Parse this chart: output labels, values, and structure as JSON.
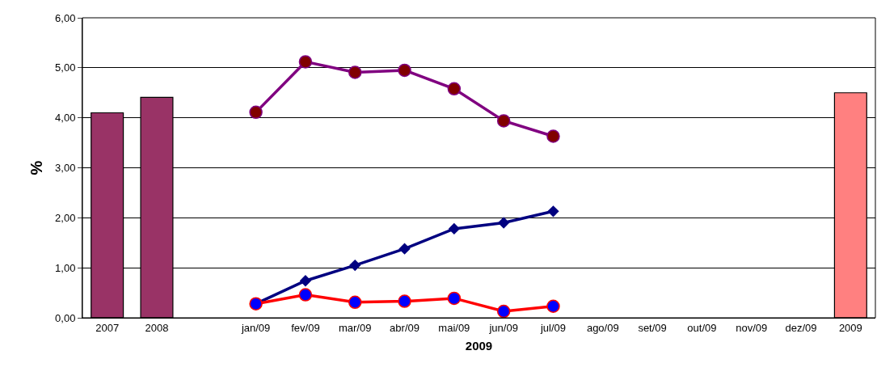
{
  "chart_data": {
    "type": "bar",
    "xlabel": "2009",
    "ylabel": "%",
    "categories": [
      "2007",
      "2008",
      null,
      "jan/09",
      "fev/09",
      "mar/09",
      "abr/09",
      "mai/09",
      "jun/09",
      "jul/09",
      "ago/09",
      "set/09",
      "out/09",
      "nov/09",
      "dez/09",
      "2009"
    ],
    "series": [
      {
        "color": "#993366",
        "colors": [
          "#993366",
          "#993366",
          null,
          null,
          null,
          null,
          null,
          null,
          null,
          null,
          null,
          null,
          null,
          null,
          null,
          "#ff8080"
        ],
        "values": [
          4.1,
          4.41,
          null,
          null,
          null,
          null,
          null,
          null,
          null,
          null,
          null,
          null,
          null,
          null,
          null,
          4.5
        ]
      },
      {
        "type": "line",
        "color": "#800080",
        "marker": "circle",
        "colors": [
          null,
          null,
          null,
          "#800000",
          "#800000",
          "#800000",
          "#800000",
          "#800000",
          "#800000",
          "#800000",
          null,
          null,
          null,
          null,
          null,
          null
        ],
        "values": [
          null,
          null,
          null,
          4.11,
          5.12,
          4.91,
          4.95,
          4.58,
          3.94,
          3.63,
          null,
          null,
          null,
          null,
          null,
          null
        ]
      },
      {
        "type": "line",
        "color": "#000080",
        "marker": "diamond",
        "values": [
          null,
          null,
          null,
          0.28,
          0.74,
          1.05,
          1.38,
          1.78,
          1.9,
          2.13,
          null,
          null,
          null,
          null,
          null,
          null
        ]
      },
      {
        "type": "line",
        "color": "#ff0000",
        "marker": "circle",
        "colors": [
          null,
          null,
          null,
          "#0000ff",
          "#0000ff",
          "#0000ff",
          "#0000ff",
          "#0000ff",
          "#0000ff",
          "#0000ff",
          null,
          null,
          null,
          null,
          null,
          null
        ],
        "values": [
          null,
          null,
          null,
          0.28,
          0.46,
          0.31,
          0.33,
          0.39,
          0.13,
          0.23,
          null,
          null,
          null,
          null,
          null,
          null
        ]
      }
    ],
    "ylim": [
      0,
      6
    ],
    "yticks": [
      {
        "value": 0,
        "label": "0,00"
      },
      {
        "value": 1,
        "label": "1,00"
      },
      {
        "value": 2,
        "label": "2,00"
      },
      {
        "value": 3,
        "label": "3,00"
      },
      {
        "value": 4,
        "label": "4,00"
      },
      {
        "value": 5,
        "label": "5,00"
      },
      {
        "value": 6,
        "label": "6,00"
      }
    ],
    "grid": "y",
    "legend": false
  }
}
